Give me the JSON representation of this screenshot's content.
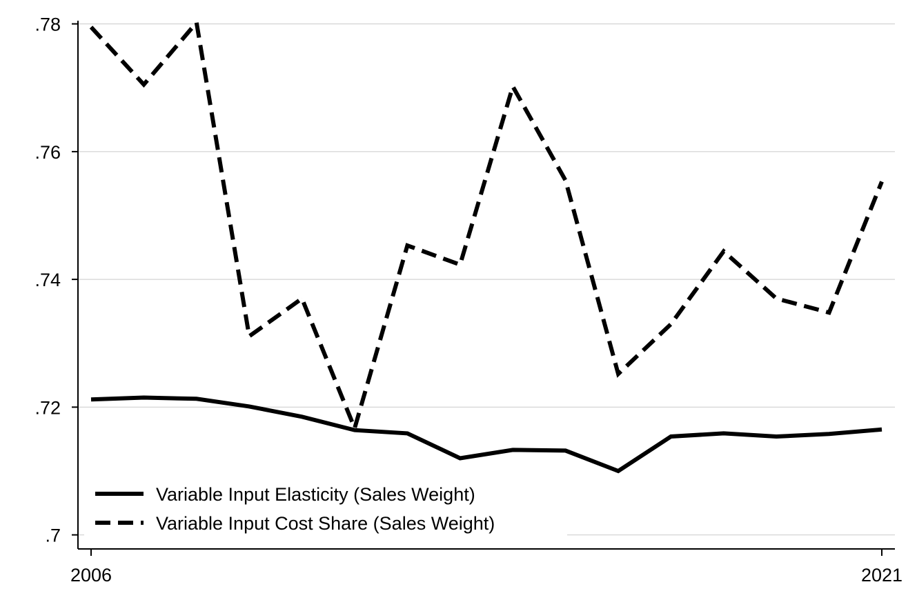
{
  "chart_data": {
    "type": "line",
    "x": [
      2006,
      2007,
      2008,
      2009,
      2010,
      2011,
      2012,
      2013,
      2014,
      2015,
      2016,
      2017,
      2018,
      2019,
      2020,
      2021
    ],
    "x_ticks": [
      "2006",
      "2021"
    ],
    "y_ticks": [
      ".7",
      ".72",
      ".74",
      ".76",
      ".78"
    ],
    "y_tick_values": [
      0.7,
      0.72,
      0.74,
      0.76,
      0.78
    ],
    "xlim": [
      2006,
      2021
    ],
    "ylim": [
      0.6978,
      0.7805
    ],
    "grid": "horizontal",
    "legend_position": "bottom-left",
    "series": [
      {
        "name": "Variable Input Elasticity (Sales Weight)",
        "style": "solid",
        "color": "#000000",
        "values": [
          0.7212,
          0.7215,
          0.7213,
          0.7201,
          0.7185,
          0.7164,
          0.7159,
          0.712,
          0.7133,
          0.7132,
          0.71,
          0.7154,
          0.7159,
          0.7154,
          0.7158,
          0.7165
        ]
      },
      {
        "name": "Variable Input Cost Share (Sales Weight)",
        "style": "dashed",
        "color": "#000000",
        "values": [
          0.7795,
          0.7705,
          0.7802,
          0.7311,
          0.737,
          0.7167,
          0.7453,
          0.7423,
          0.7702,
          0.7555,
          0.7252,
          0.733,
          0.7444,
          0.737,
          0.7348,
          0.7553
        ]
      }
    ]
  }
}
